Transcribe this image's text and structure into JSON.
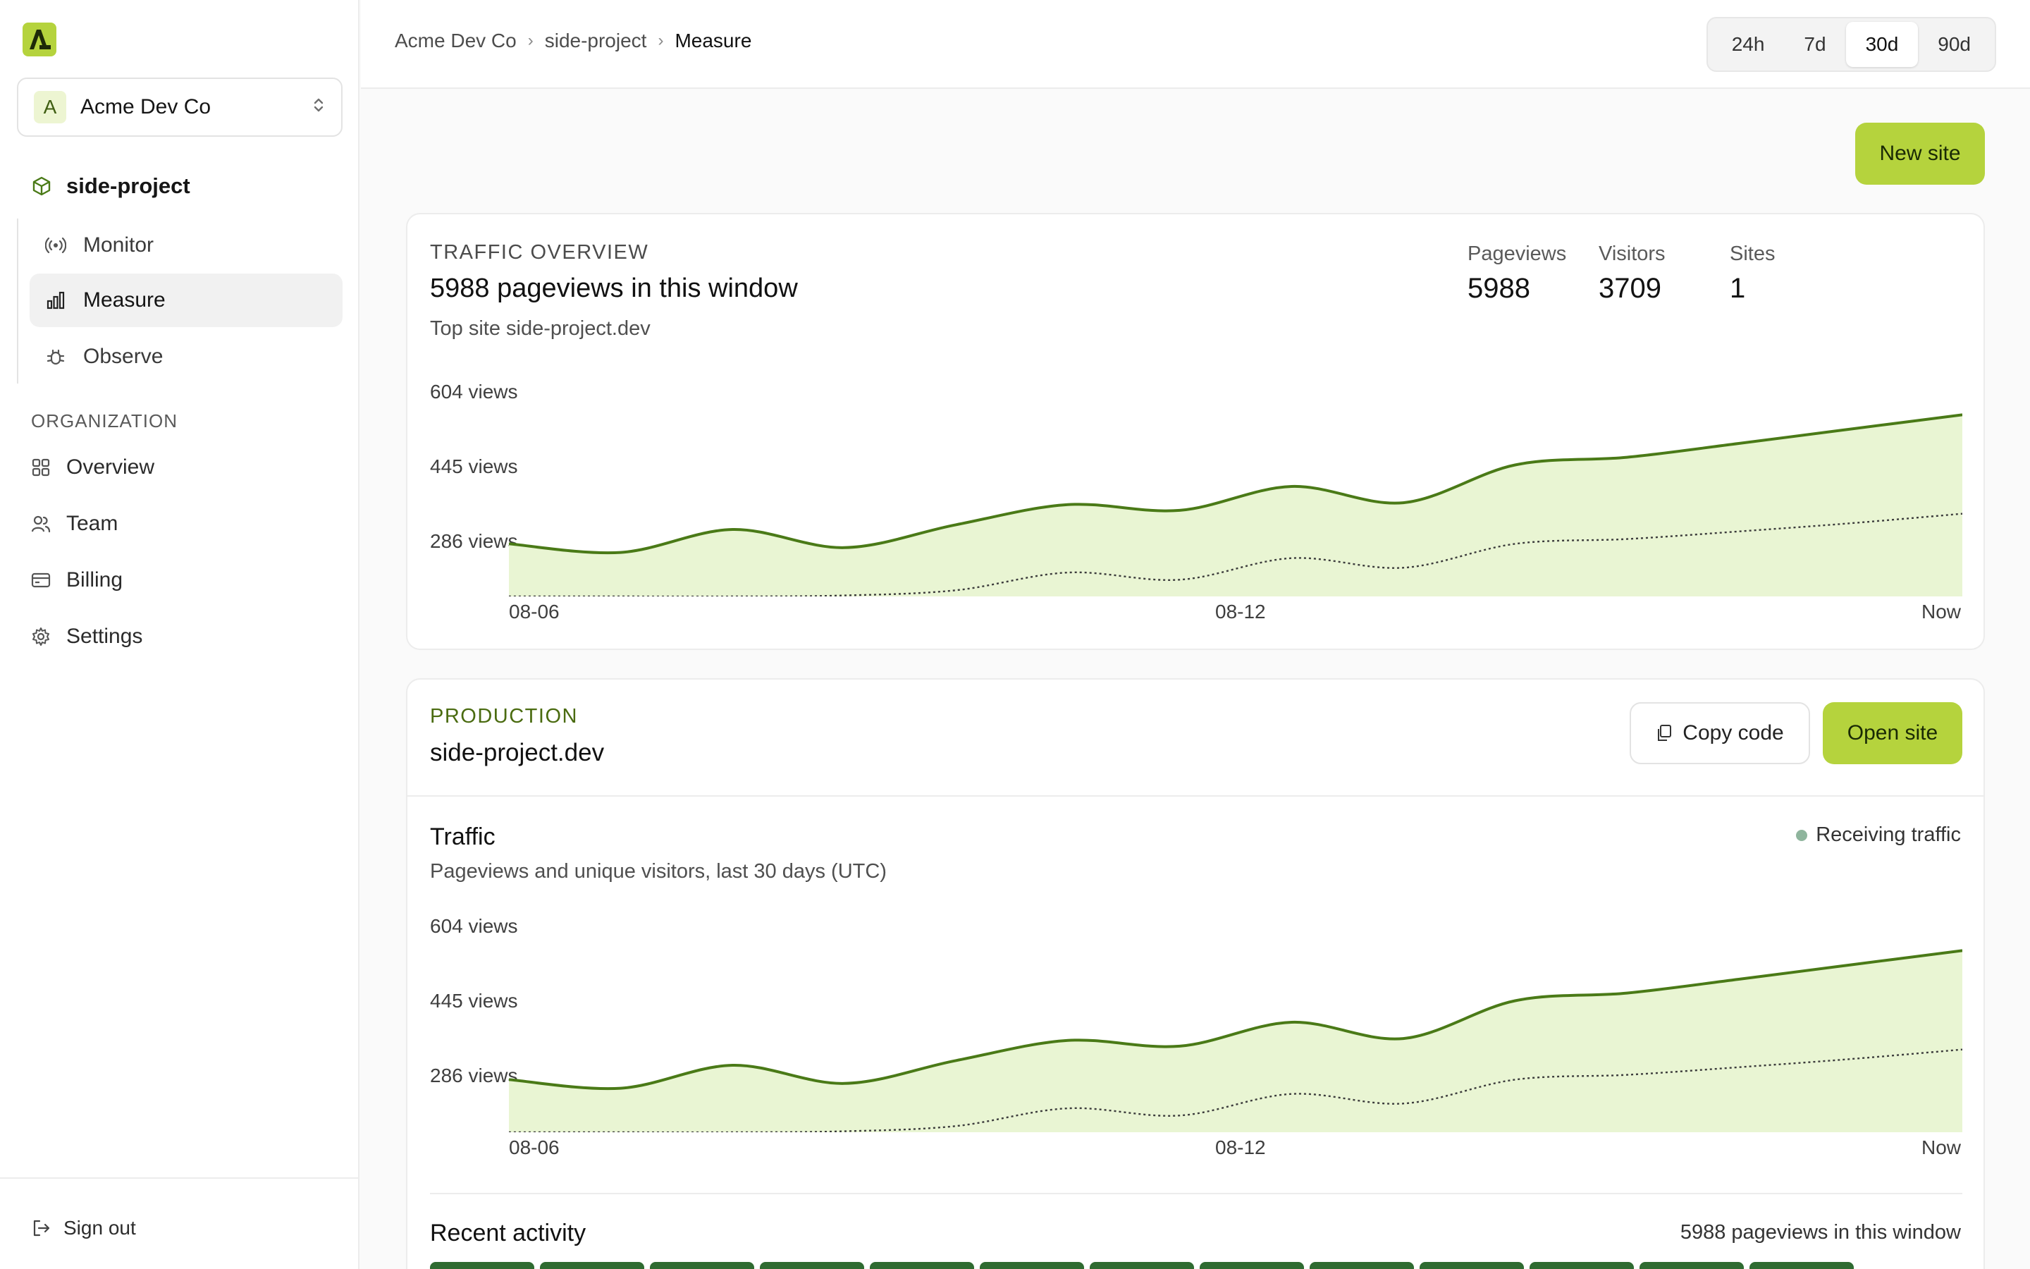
{
  "sidebar": {
    "org_avatar": "A",
    "org_name": "Acme Dev Co",
    "project": "side-project",
    "project_nav": [
      {
        "label": "Monitor",
        "icon": "broadcast-icon"
      },
      {
        "label": "Measure",
        "icon": "bar-chart-icon",
        "active": true
      },
      {
        "label": "Observe",
        "icon": "bug-icon"
      }
    ],
    "section_label": "ORGANIZATION",
    "org_nav": [
      {
        "label": "Overview",
        "icon": "grid-icon"
      },
      {
        "label": "Team",
        "icon": "users-icon"
      },
      {
        "label": "Billing",
        "icon": "credit-card-icon"
      },
      {
        "label": "Settings",
        "icon": "gear-icon"
      }
    ],
    "sign_out": "Sign out"
  },
  "header": {
    "breadcrumb": [
      "Acme Dev Co",
      "side-project",
      "Measure"
    ],
    "ranges": [
      "24h",
      "7d",
      "30d",
      "90d"
    ],
    "selected_range": "30d"
  },
  "actions": {
    "new_site": "New site"
  },
  "overview": {
    "eyebrow": "TRAFFIC OVERVIEW",
    "title": "5988 pageviews in this window",
    "subtitle": "Top site side-project.dev",
    "stats": [
      {
        "label": "Pageviews",
        "value": "5988"
      },
      {
        "label": "Visitors",
        "value": "3709"
      },
      {
        "label": "Sites",
        "value": "1"
      }
    ]
  },
  "site": {
    "env": "PRODUCTION",
    "domain": "side-project.dev",
    "copy_code": "Copy code",
    "open_site": "Open site",
    "traffic_title": "Traffic",
    "traffic_subtitle": "Pageviews and unique visitors, last 30 days (UTC)",
    "status": "Receiving traffic",
    "recent_title": "Recent activity",
    "recent_summary": "5988 pageviews in this window"
  },
  "colors": {
    "accent": "#b5d33d",
    "line": "#4a7a17",
    "fill": "#e9f5d3",
    "env_label": "#4a6b10"
  },
  "chart_data": {
    "type": "area",
    "x_tick_labels": [
      "08-06",
      "08-12",
      "Now"
    ],
    "y_tick_labels": [
      "604 views",
      "445 views",
      "286 views"
    ],
    "ylim": [
      180,
      640
    ],
    "series": [
      {
        "values": [
          290,
          272,
          320,
          282,
          330,
          372,
          360,
          410,
          376,
          455,
          471,
          500,
          530,
          560
        ]
      },
      {
        "values": [
          180,
          180,
          180,
          182,
          193,
          230,
          215,
          260,
          240,
          290,
          300,
          316,
          333,
          353
        ]
      }
    ]
  }
}
